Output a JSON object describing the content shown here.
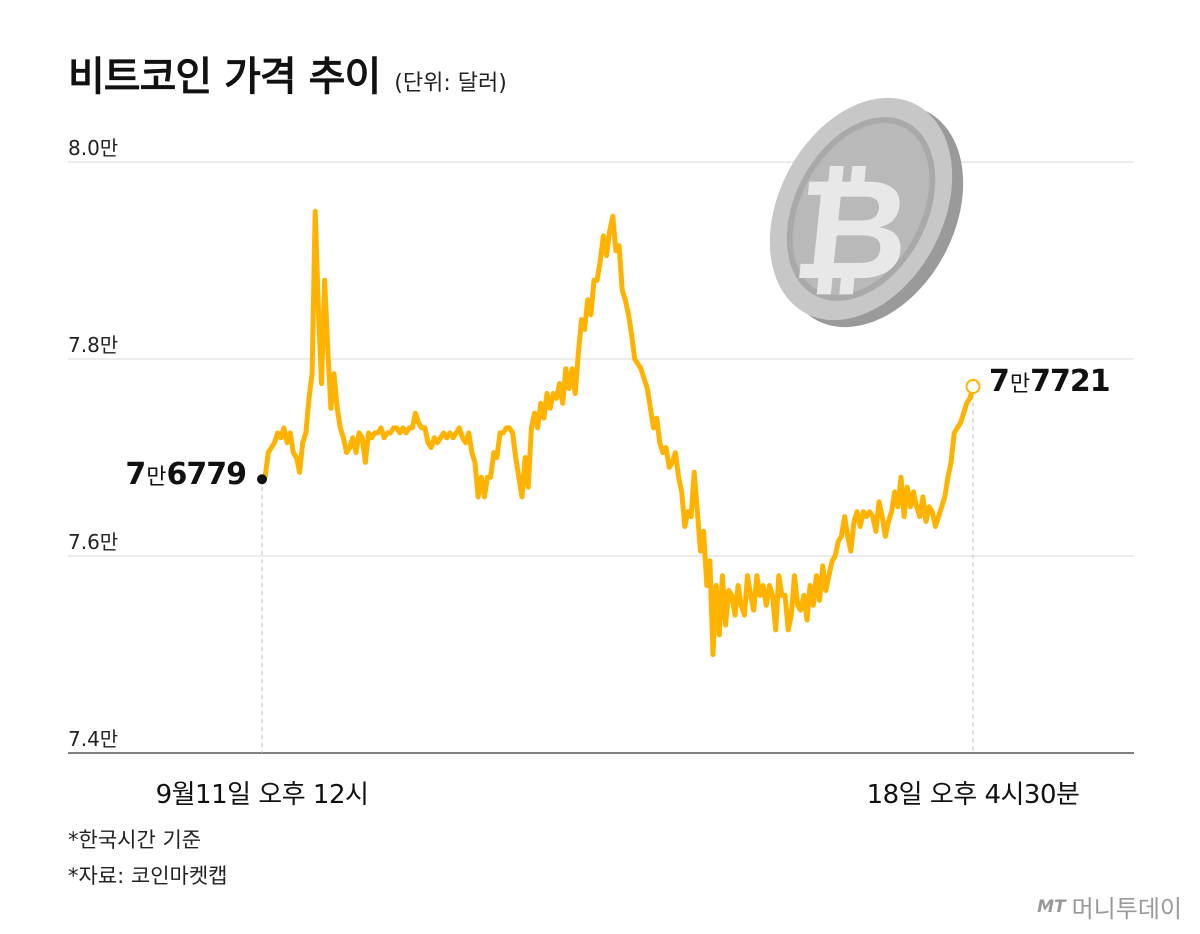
{
  "header": {
    "title": "비트코인 가격 추이",
    "unit": "(단위: 달러)"
  },
  "notes": [
    "*한국시간 기준",
    "*자료: 코인마켓캡"
  ],
  "brand": {
    "mark": "MT",
    "name": "머니투데이"
  },
  "annotations": {
    "start": {
      "num": "7",
      "man": "만",
      "rest": "6779"
    },
    "end": {
      "num": "7",
      "man": "만",
      "rest": "7721"
    }
  },
  "colors": {
    "line": "#FFB300",
    "grid": "#d9d9d9",
    "axis": "#555555",
    "coin": "#b8b8b8"
  },
  "icon": "bitcoin-coin-icon",
  "chart_data": {
    "type": "line",
    "title": "비트코인 가격 추이",
    "unit": "달러",
    "ylim": [
      74000,
      80000
    ],
    "yticks": [
      80000,
      78000,
      76000,
      74000
    ],
    "ytick_labels": [
      "8.0만",
      "7.8만",
      "7.6만",
      "7.4만"
    ],
    "xtick_labels": [
      "9월11일 오후 12시",
      "18일 오후 4시30분"
    ],
    "grid": "horizontal",
    "start_value": 76779,
    "end_value": 77721,
    "series": [
      {
        "values": [
          76779,
          76800,
          77050,
          77100,
          77150,
          77250,
          77200,
          77300,
          77150,
          77250,
          77050,
          77000,
          76850,
          77150,
          77250,
          77600,
          77850,
          79500,
          78500,
          77750,
          78800,
          78100,
          77500,
          77850,
          77500,
          77300,
          77200,
          77050,
          77100,
          77200,
          77050,
          77250,
          77200,
          76950,
          77250,
          77200,
          77250,
          77250,
          77300,
          77200,
          77250,
          77250,
          77300,
          77300,
          77250,
          77300,
          77250,
          77300,
          77300,
          77450,
          77350,
          77300,
          77300,
          77150,
          77100,
          77200,
          77150,
          77200,
          77250,
          77200,
          77250,
          77200,
          77250,
          77300,
          77200,
          77150,
          77250,
          77050,
          76950,
          76600,
          76800,
          76600,
          76800,
          76800,
          77050,
          77000,
          77250,
          77250,
          77300,
          77300,
          77250,
          77000,
          76800,
          76600,
          77000,
          76700,
          77300,
          77450,
          77300,
          77550,
          77400,
          77650,
          77500,
          77650,
          77600,
          77750,
          77550,
          77900,
          77700,
          77900,
          77650,
          78050,
          78400,
          78300,
          78600,
          78450,
          78800,
          78800,
          79000,
          79250,
          79050,
          79300,
          79450,
          79100,
          79150,
          78700,
          78600,
          78450,
          78250,
          78000,
          77950,
          77900,
          77800,
          77700,
          77500,
          77300,
          77400,
          77150,
          77050,
          77100,
          76900,
          76950,
          77050,
          76800,
          76650,
          76300,
          76450,
          76400,
          76850,
          76450,
          76050,
          76250,
          75700,
          75950,
          75000,
          75700,
          75200,
          75800,
          75300,
          75650,
          75600,
          75400,
          75700,
          75500,
          75400,
          75800,
          75600,
          75450,
          75800,
          75600,
          75700,
          75500,
          75700,
          75600,
          75250,
          75800,
          75600,
          75600,
          75250,
          75400,
          75800,
          75500,
          75450,
          75600,
          75350,
          75700,
          75500,
          75800,
          75550,
          75900,
          75650,
          75800,
          75950,
          76000,
          76150,
          76200,
          76400,
          76200,
          76050,
          76350,
          76450,
          76300,
          76450,
          76400,
          76450,
          76400,
          76250,
          76550,
          76400,
          76200,
          76350,
          76450,
          76650,
          76500,
          76800,
          76400,
          76700,
          76500,
          76650,
          76500,
          76400,
          76600,
          76350,
          76500,
          76450,
          76300,
          76400,
          76500,
          76600,
          76800,
          76950,
          77250,
          77300,
          77350,
          77450,
          77550,
          77600,
          77721
        ]
      }
    ]
  }
}
